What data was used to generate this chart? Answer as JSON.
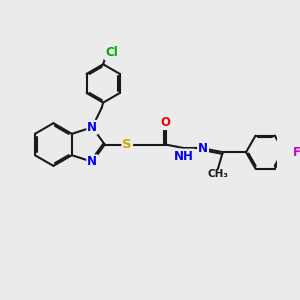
{
  "bg_color": "#ebebeb",
  "bond_color": "#1a1a1a",
  "bond_width": 1.5,
  "atom_colors": {
    "N": "#0000ee",
    "O": "#ee0000",
    "S": "#ccaa00",
    "Cl": "#00aa00",
    "F": "#cc00cc",
    "C": "#1a1a1a",
    "H": "#1a1a1a"
  },
  "font_size": 8.5,
  "fig_size": [
    3.0,
    3.0
  ],
  "dpi": 100
}
